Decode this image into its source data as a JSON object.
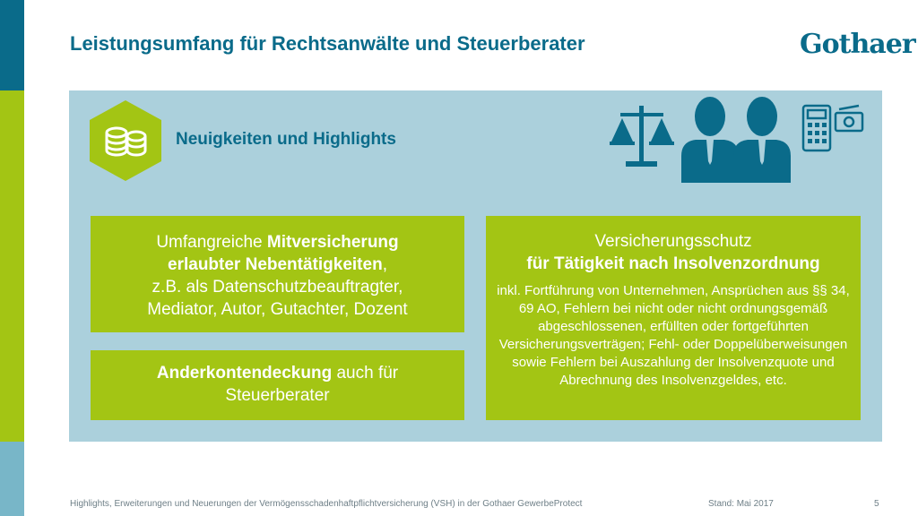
{
  "slide": {
    "title": "Leistungsumfang für Rechtsanwälte und Steuerberater",
    "logo_text": "Gothaer",
    "subtitle": "Neuigkeiten und Highlights",
    "icons": [
      "coins-icon",
      "scales-icon",
      "two-persons-icon",
      "calculator-icon",
      "money-icon"
    ],
    "colors": {
      "blue": "#0a6b8a",
      "green": "#a3c514",
      "panel": "#abd0dc",
      "light_blue": "#78b6c8"
    }
  },
  "box1": {
    "l1_a": "Umfangreiche ",
    "l1_b": "Mitversicherung",
    "l2_b": "erlaubter Nebentätigkeiten",
    "l2_a": ",",
    "l3": "z.B. als Datenschutzbeauftragter,",
    "l4": "Mediator, Autor, Gutachter, Dozent"
  },
  "box2": {
    "l1_b": "Anderkontendeckung",
    "l1_a": " auch für",
    "l2": "Steuerberater"
  },
  "box3": {
    "l1": "Versicherungsschutz",
    "l2": "für Tätigkeit nach Insolvenzordnung",
    "detail": "inkl. Fortführung von Unternehmen, Ansprüchen aus §§ 34, 69 AO, Fehlern bei nicht oder nicht ordnungsgemäß abgeschlossenen, erfüllten oder fortgeführten Versicherungsverträgen; Fehl- oder Doppelüberweisungen sowie Fehlern bei Auszahlung der Insolvenzquote und Abrechnung des Insolvenzgeldes, etc."
  },
  "footer": {
    "left": "Highlights, Erweiterungen und Neuerungen der Vermögensschadenhaftpflichtversicherung (VSH) in der Gothaer GewerbeProtect",
    "date": "Stand: Mai 2017",
    "page": "5"
  }
}
